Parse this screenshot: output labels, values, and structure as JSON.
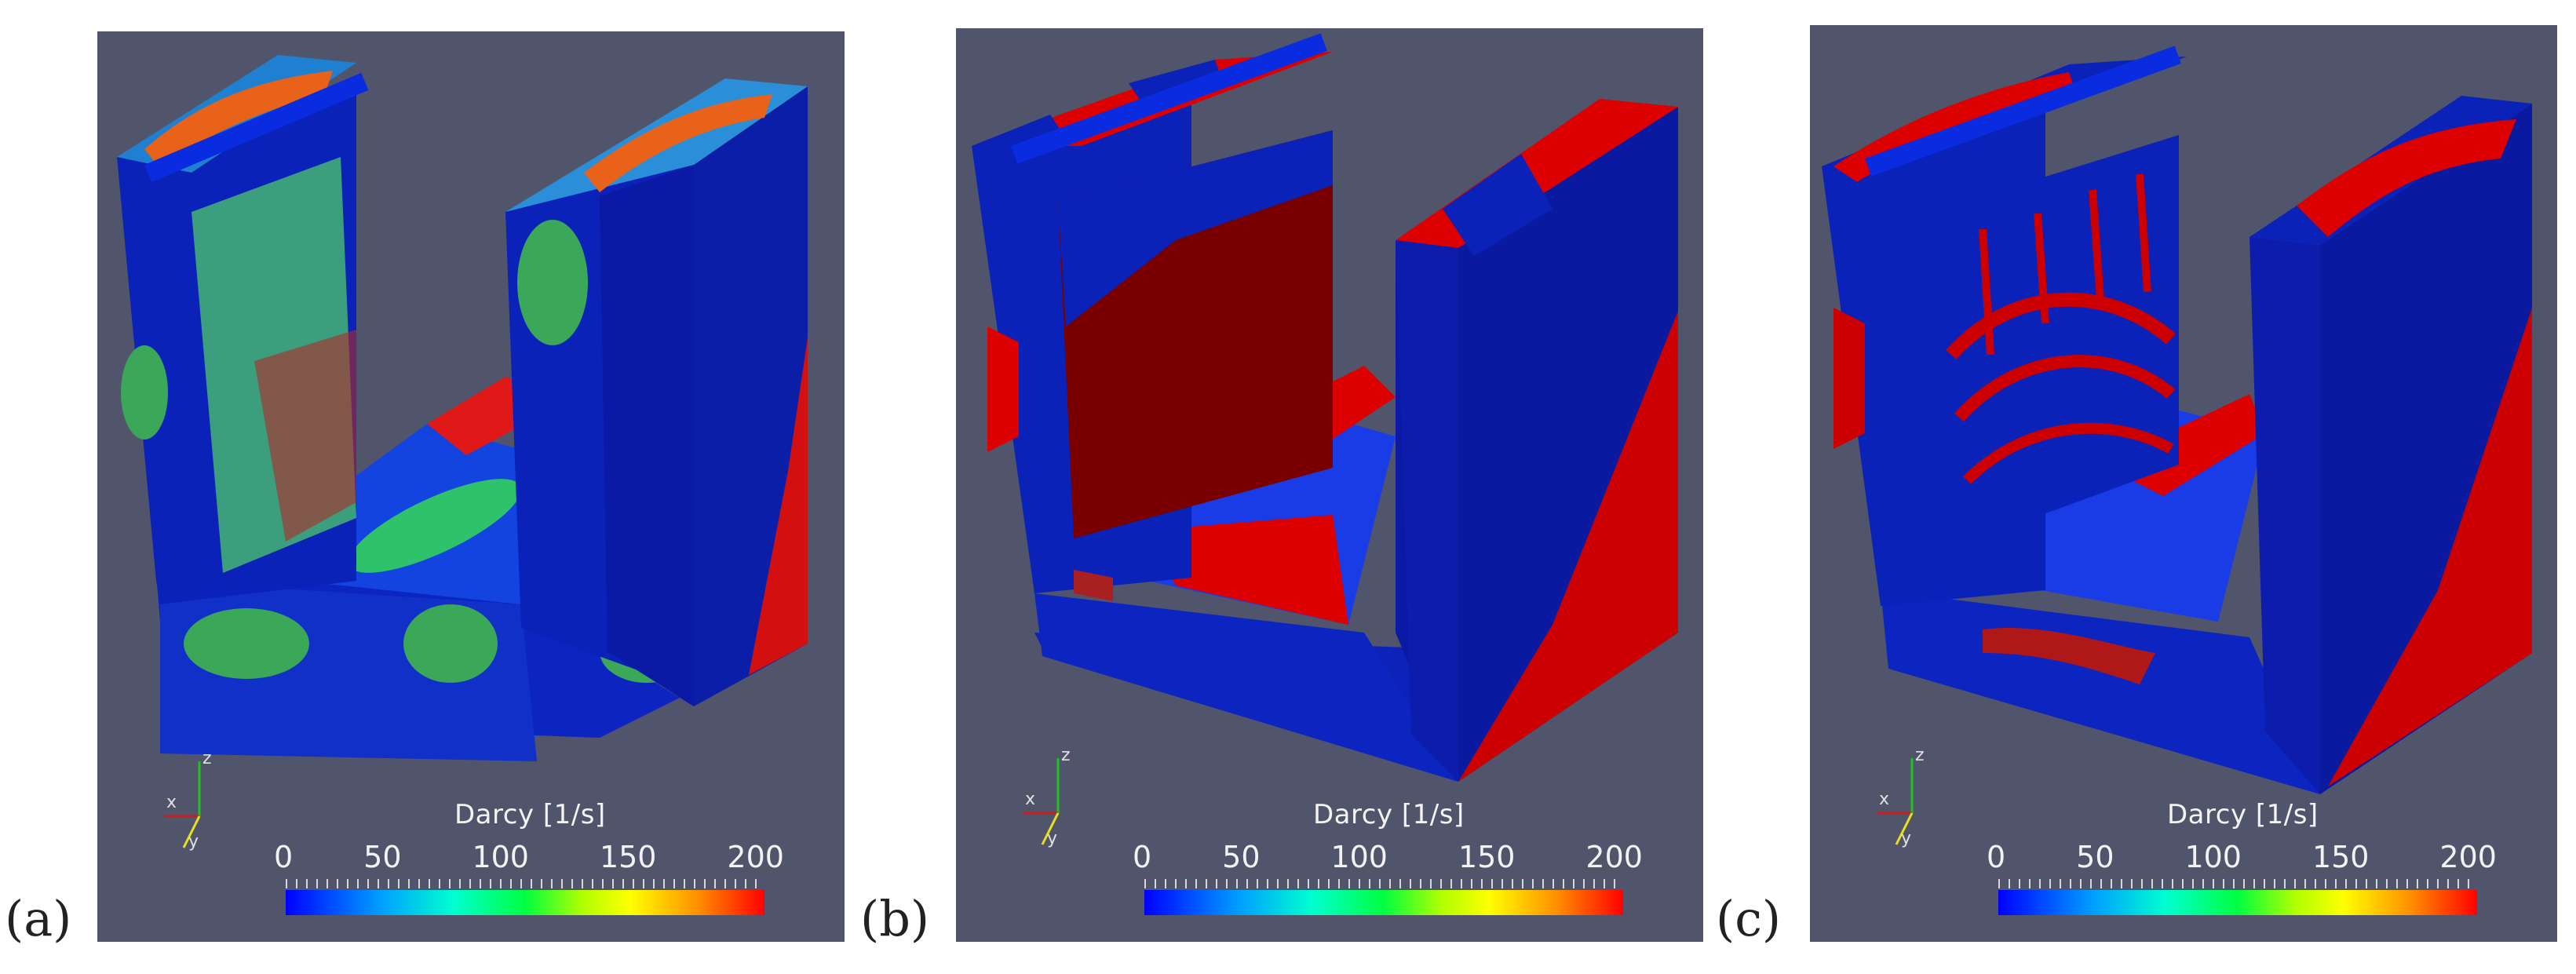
{
  "panels": [
    {
      "label": "(a)",
      "colorbar": {
        "title": "Darcy [1/s]",
        "ticks": [
          "0",
          "50",
          "100",
          "150",
          "200"
        ]
      },
      "axes": {
        "x": "x",
        "y": "y",
        "z": "z"
      }
    },
    {
      "label": "(b)",
      "colorbar": {
        "title": "Darcy [1/s]",
        "ticks": [
          "0",
          "50",
          "100",
          "150",
          "200"
        ]
      },
      "axes": {
        "x": "x",
        "y": "y",
        "z": "z"
      }
    },
    {
      "label": "(c)",
      "colorbar": {
        "title": "Darcy [1/s]",
        "ticks": [
          "0",
          "50",
          "100",
          "150",
          "200"
        ]
      },
      "axes": {
        "x": "x",
        "y": "y",
        "z": "z"
      }
    }
  ],
  "colors": {
    "background": "#51556b",
    "low": "#0000cc",
    "high": "#dd0000",
    "dark_red": "#7a0000"
  }
}
